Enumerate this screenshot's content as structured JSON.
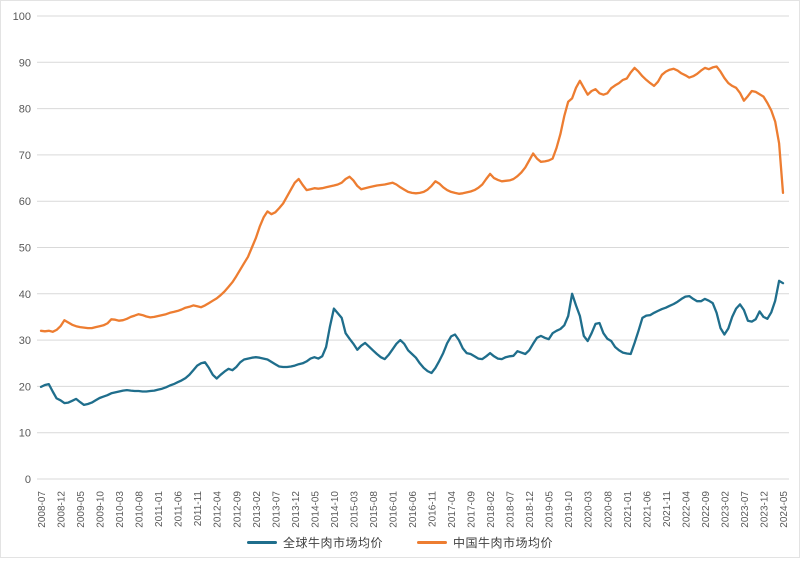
{
  "chart_data": {
    "type": "line",
    "title": "",
    "xlabel": "",
    "ylabel": "",
    "ylim": [
      0,
      100
    ],
    "y_ticks": [
      0,
      10,
      20,
      30,
      40,
      50,
      60,
      70,
      80,
      90,
      100
    ],
    "grid": "horizontal",
    "grid_color": "#d9d9d9",
    "axis_label_color": "#595959",
    "legend_position": "bottom",
    "start_month": "2008-07",
    "end_month": "2024-05",
    "x_tick_every_months": 5,
    "x_tick_labels": [
      "2008-07",
      "2008-12",
      "2009-05",
      "2009-10",
      "2010-03",
      "2010-08",
      "2011-01",
      "2011-06",
      "2011-11",
      "2012-04",
      "2012-09",
      "2013-02",
      "2013-07",
      "2013-12",
      "2014-05",
      "2014-10",
      "2015-03",
      "2015-08",
      "2016-01",
      "2016-06",
      "2016-11",
      "2017-04",
      "2017-09",
      "2018-02",
      "2018-07",
      "2018-12",
      "2019-05",
      "2019-10",
      "2020-03",
      "2020-08",
      "2021-01",
      "2021-06",
      "2021-11",
      "2022-04",
      "2022-09",
      "2023-02",
      "2023-07",
      "2023-12",
      "2024-05"
    ],
    "series": [
      {
        "name": "全球牛肉市场均价",
        "color": "#1f6e8c",
        "values": [
          19.9,
          20.3,
          20.5,
          18.9,
          17.4,
          17.0,
          16.4,
          16.5,
          16.9,
          17.3,
          16.6,
          16.0,
          16.2,
          16.5,
          17.0,
          17.5,
          17.8,
          18.1,
          18.5,
          18.7,
          18.9,
          19.1,
          19.2,
          19.1,
          19.0,
          19.0,
          18.9,
          18.9,
          19.0,
          19.1,
          19.3,
          19.5,
          19.8,
          20.2,
          20.5,
          20.9,
          21.3,
          21.8,
          22.5,
          23.5,
          24.5,
          25.0,
          25.2,
          24.0,
          22.5,
          21.7,
          22.5,
          23.2,
          23.8,
          23.5,
          24.2,
          25.2,
          25.8,
          26.0,
          26.2,
          26.3,
          26.2,
          26.0,
          25.8,
          25.3,
          24.8,
          24.3,
          24.2,
          24.2,
          24.3,
          24.5,
          24.8,
          25.0,
          25.4,
          26.0,
          26.3,
          26.0,
          26.5,
          28.5,
          33.0,
          36.8,
          35.8,
          34.8,
          31.5,
          30.3,
          29.2,
          27.9,
          28.8,
          29.4,
          28.6,
          27.8,
          27.0,
          26.3,
          25.9,
          26.8,
          28.0,
          29.2,
          30.0,
          29.2,
          27.8,
          27.0,
          26.2,
          25.0,
          24.0,
          23.3,
          22.9,
          24.0,
          25.5,
          27.2,
          29.3,
          30.8,
          31.2,
          30.0,
          28.2,
          27.2,
          27.0,
          26.5,
          26.0,
          25.9,
          26.5,
          27.2,
          26.5,
          26.0,
          25.9,
          26.3,
          26.5,
          26.6,
          27.6,
          27.3,
          27.0,
          27.8,
          29.2,
          30.5,
          30.9,
          30.5,
          30.2,
          31.5,
          32.0,
          32.4,
          33.2,
          35.2,
          40.0,
          37.5,
          35.2,
          30.9,
          29.8,
          31.5,
          33.5,
          33.7,
          31.5,
          30.3,
          29.8,
          28.5,
          27.8,
          27.3,
          27.1,
          27.0,
          29.4,
          32.0,
          34.8,
          35.3,
          35.4,
          35.9,
          36.3,
          36.7,
          37.0,
          37.4,
          37.8,
          38.3,
          38.9,
          39.4,
          39.5,
          38.9,
          38.4,
          38.4,
          38.9,
          38.5,
          38.0,
          35.9,
          32.6,
          31.2,
          32.5,
          35.0,
          36.8,
          37.7,
          36.5,
          34.2,
          34.0,
          34.5,
          36.2,
          35.0,
          34.6,
          36.0,
          38.5,
          42.8,
          42.3
        ]
      },
      {
        "name": "中国牛肉市场均价",
        "color": "#ed7d31",
        "values": [
          32.0,
          31.9,
          32.0,
          31.8,
          32.2,
          33.0,
          34.3,
          33.8,
          33.3,
          33.0,
          32.8,
          32.7,
          32.6,
          32.6,
          32.8,
          33.0,
          33.2,
          33.6,
          34.5,
          34.4,
          34.2,
          34.3,
          34.6,
          35.0,
          35.3,
          35.6,
          35.4,
          35.1,
          34.9,
          35.0,
          35.2,
          35.4,
          35.6,
          35.9,
          36.1,
          36.3,
          36.6,
          37.0,
          37.2,
          37.5,
          37.3,
          37.1,
          37.5,
          38.0,
          38.5,
          39.0,
          39.7,
          40.5,
          41.5,
          42.5,
          43.8,
          45.2,
          46.6,
          48.0,
          50.0,
          52.0,
          54.5,
          56.5,
          57.8,
          57.2,
          57.6,
          58.5,
          59.5,
          61.0,
          62.5,
          64.0,
          64.8,
          63.5,
          62.4,
          62.6,
          62.8,
          62.7,
          62.8,
          63.0,
          63.2,
          63.4,
          63.6,
          64.0,
          64.8,
          65.3,
          64.5,
          63.3,
          62.6,
          62.8,
          63.0,
          63.2,
          63.4,
          63.5,
          63.6,
          63.8,
          64.0,
          63.6,
          63.0,
          62.5,
          62.0,
          61.8,
          61.7,
          61.8,
          62.0,
          62.5,
          63.3,
          64.3,
          63.8,
          63.0,
          62.4,
          62.0,
          61.8,
          61.6,
          61.7,
          61.9,
          62.1,
          62.4,
          62.9,
          63.6,
          64.8,
          65.9,
          65.0,
          64.6,
          64.3,
          64.4,
          64.5,
          64.8,
          65.4,
          66.2,
          67.3,
          68.8,
          70.3,
          69.2,
          68.5,
          68.6,
          68.8,
          69.2,
          71.5,
          74.5,
          78.4,
          81.5,
          82.2,
          84.5,
          86.0,
          84.5,
          83.0,
          83.8,
          84.2,
          83.3,
          83.0,
          83.3,
          84.4,
          85.0,
          85.5,
          86.2,
          86.5,
          87.8,
          88.8,
          88.0,
          87.0,
          86.2,
          85.5,
          84.9,
          85.8,
          87.3,
          88.0,
          88.4,
          88.6,
          88.2,
          87.6,
          87.2,
          86.7,
          87.0,
          87.5,
          88.2,
          88.8,
          88.5,
          88.9,
          89.1,
          88.0,
          86.6,
          85.5,
          84.9,
          84.5,
          83.4,
          81.7,
          82.7,
          83.8,
          83.6,
          83.1,
          82.6,
          81.2,
          79.6,
          77.2,
          72.5,
          61.8
        ]
      }
    ]
  }
}
